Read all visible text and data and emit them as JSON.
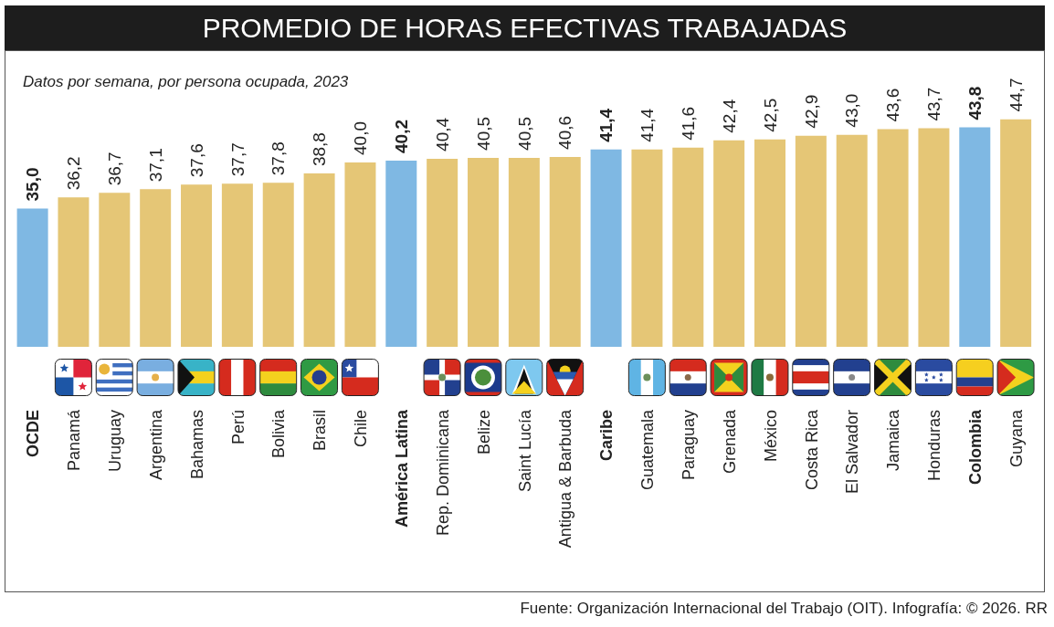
{
  "chart_data": {
    "type": "bar",
    "title": "PROMEDIO DE HORAS EFECTIVAS TRABAJADAS",
    "subtitle": "Datos por semana, por persona ocupada, 2023",
    "annotations": [
      "Fuente: Organización Internacional del Trabajo (OIT). Infografía: © 2026. RR"
    ],
    "categories": [
      "OCDE",
      "Panamá",
      "Uruguay",
      "Argentina",
      "Bahamas",
      "Perú",
      "Bolivia",
      "Brasil",
      "Chile",
      "América Latina",
      "Rep. Dominicana",
      "Belize",
      "Saint Lucía",
      "Antigua & Barbuda",
      "Caribe",
      "Guatemala",
      "Paraguay",
      "Grenada",
      "México",
      "Costa Rica",
      "El Salvador",
      "Jamaica",
      "Honduras",
      "Colombia",
      "Guyana"
    ],
    "values": [
      35.0,
      36.2,
      36.7,
      37.1,
      37.6,
      37.7,
      37.8,
      38.8,
      40.0,
      40.2,
      40.4,
      40.5,
      40.5,
      40.6,
      41.4,
      41.4,
      41.6,
      42.4,
      42.5,
      42.9,
      43.0,
      43.6,
      43.7,
      43.8,
      44.7
    ],
    "value_labels": [
      "35,0",
      "36,2",
      "36,7",
      "37,1",
      "37,6",
      "37,7",
      "37,8",
      "38,8",
      "40,0",
      "40,2",
      "40,4",
      "40,5",
      "40,5",
      "40,6",
      "41,4",
      "41,4",
      "41,6",
      "42,4",
      "42,5",
      "42,9",
      "43,0",
      "43,6",
      "43,7",
      "43,8",
      "44,7"
    ],
    "colors": [
      "#7fb8e3",
      "#e5c676",
      "#e5c676",
      "#e5c676",
      "#e5c676",
      "#e5c676",
      "#e5c676",
      "#e5c676",
      "#e5c676",
      "#7fb8e3",
      "#e5c676",
      "#e5c676",
      "#e5c676",
      "#e5c676",
      "#7fb8e3",
      "#e5c676",
      "#e5c676",
      "#e5c676",
      "#e5c676",
      "#e5c676",
      "#e5c676",
      "#e5c676",
      "#e5c676",
      "#7fb8e3",
      "#e5c676"
    ],
    "ylim": [
      20,
      44.7
    ],
    "tick_labels": "x"
  }
}
